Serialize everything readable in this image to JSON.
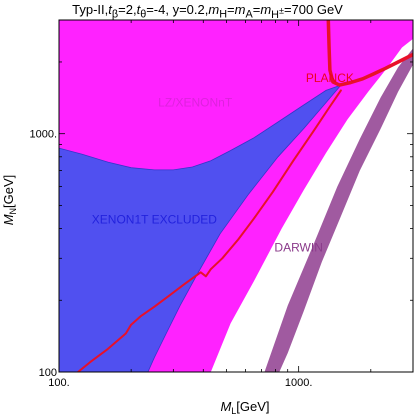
{
  "chart_data": {
    "type": "area",
    "title_parts": {
      "model": "Typ-II,",
      "tb_sym": "t",
      "tb_sub": "β",
      "tb_val": "=2,",
      "tt_sym": "t",
      "tt_sub": "θ",
      "tt_val": "=-4, y=0.2,",
      "m1": "m",
      "m1_sub": "H",
      "eq1": "=",
      "m2": "m",
      "m2_sub": "A",
      "eq2": "=",
      "m3": "m",
      "m3_sub": "H",
      "m3_sup": "±",
      "m3_val": "=700 GeV"
    },
    "xlabel": {
      "sym": "M",
      "sub": "L",
      "unit": "[GeV]"
    },
    "ylabel": {
      "sym": "M",
      "sub": "N",
      "unit": "[GeV]"
    },
    "xscale": "log",
    "yscale": "log",
    "xlim": [
      100,
      3000
    ],
    "ylim": [
      100,
      3000
    ],
    "x_ticks": [
      {
        "value": 100,
        "label": "100."
      },
      {
        "value": 1000,
        "label": "1000."
      }
    ],
    "y_ticks": [
      {
        "value": 100,
        "label": "100"
      },
      {
        "value": 1000,
        "label": "1000."
      }
    ],
    "region_labels": [
      {
        "text": "LZ/XENONnT",
        "x": 370,
        "y": 1300,
        "color": "#dd22dd"
      },
      {
        "text": "XENON1T EXCLUDED",
        "x": 250,
        "y": 420,
        "color": "#2222dd"
      },
      {
        "text": "DARWIN",
        "x": 1000,
        "y": 320,
        "color": "#8a3a8a"
      },
      {
        "text": "PLANCK",
        "x": 1350,
        "y": 1650,
        "color": "#ee0022"
      }
    ],
    "series": [
      {
        "name": "LZ/XENONnT",
        "color": "#ff22ff",
        "points": [
          [
            100,
            3000
          ],
          [
            3000,
            3000
          ],
          [
            3000,
            2500
          ],
          [
            2700,
            2300
          ],
          [
            2350,
            1900
          ],
          [
            1950,
            1500
          ],
          [
            1600,
            1150
          ],
          [
            1300,
            830
          ],
          [
            1050,
            580
          ],
          [
            850,
            400
          ],
          [
            650,
            240
          ],
          [
            520,
            160
          ],
          [
            430,
            100
          ],
          [
            100,
            100
          ]
        ]
      },
      {
        "name": "XENON1T EXCLUDED",
        "color": "#5050f0",
        "points": [
          [
            100,
            870
          ],
          [
            125,
            820
          ],
          [
            160,
            760
          ],
          [
            200,
            720
          ],
          [
            250,
            705
          ],
          [
            300,
            705
          ],
          [
            360,
            725
          ],
          [
            430,
            770
          ],
          [
            520,
            850
          ],
          [
            650,
            960
          ],
          [
            820,
            1120
          ],
          [
            1050,
            1320
          ],
          [
            1300,
            1520
          ],
          [
            1500,
            1600
          ],
          [
            1300,
            1350
          ],
          [
            1050,
            1050
          ],
          [
            820,
            800
          ],
          [
            620,
            560
          ],
          [
            470,
            380
          ],
          [
            380,
            260
          ],
          [
            320,
            190
          ],
          [
            280,
            145
          ],
          [
            250,
            115
          ],
          [
            235,
            100
          ],
          [
            100,
            100
          ]
        ]
      },
      {
        "name": "DARWIN",
        "color": "#a05aa0",
        "points": [
          [
            720,
            100
          ],
          [
            900,
            190
          ],
          [
            1150,
            340
          ],
          [
            1450,
            600
          ],
          [
            1800,
            950
          ],
          [
            2200,
            1420
          ],
          [
            2600,
            1900
          ],
          [
            3000,
            2280
          ],
          [
            3000,
            1950
          ],
          [
            2600,
            1500
          ],
          [
            2200,
            1050
          ],
          [
            1800,
            700
          ],
          [
            1500,
            450
          ],
          [
            1250,
            290
          ],
          [
            1050,
            180
          ],
          [
            900,
            120
          ],
          [
            830,
            100
          ]
        ]
      },
      {
        "name": "PLANCK",
        "color": "#e8102a",
        "points": [
          [
            120,
            100
          ],
          [
            135,
            110
          ],
          [
            160,
            125
          ],
          [
            190,
            145
          ],
          [
            200,
            158
          ],
          [
            220,
            172
          ],
          [
            250,
            188
          ],
          [
            290,
            210
          ],
          [
            330,
            232
          ],
          [
            390,
            262
          ],
          [
            410,
            252
          ],
          [
            430,
            270
          ],
          [
            480,
            300
          ],
          [
            560,
            360
          ],
          [
            650,
            440
          ],
          [
            780,
            570
          ],
          [
            950,
            770
          ],
          [
            1150,
            1020
          ],
          [
            1350,
            1300
          ],
          [
            1500,
            1520
          ]
        ]
      },
      {
        "name": "PLANCK-upper",
        "color": "#e8102a",
        "points": [
          [
            1330,
            3000
          ],
          [
            1340,
            2300
          ],
          [
            1350,
            1850
          ],
          [
            1390,
            1650
          ],
          [
            1480,
            1600
          ],
          [
            1650,
            1640
          ],
          [
            1850,
            1700
          ],
          [
            2050,
            1780
          ],
          [
            2300,
            1880
          ],
          [
            2600,
            2000
          ],
          [
            3000,
            2150
          ]
        ]
      }
    ]
  }
}
